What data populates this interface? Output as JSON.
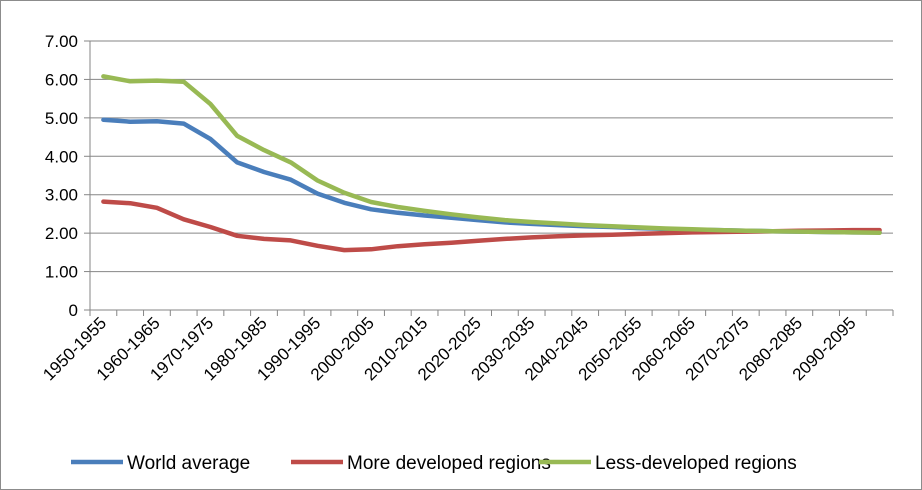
{
  "chart_data": {
    "type": "line",
    "title": "",
    "xlabel": "",
    "ylabel": "",
    "ylim": [
      0,
      7
    ],
    "y_ticks": [
      "0",
      "1.00",
      "2.00",
      "3.00",
      "4.00",
      "5.00",
      "6.00",
      "7.00"
    ],
    "grid": "horizontal",
    "legend_position": "bottom",
    "categories": [
      "1950-1955",
      "1955-1960",
      "1960-1965",
      "1965-1970",
      "1970-1975",
      "1975-1980",
      "1980-1985",
      "1985-1990",
      "1990-1995",
      "1995-2000",
      "2000-2005",
      "2005-2010",
      "2010-2015",
      "2015-2020",
      "2020-2025",
      "2025-2030",
      "2030-2035",
      "2035-2040",
      "2040-2045",
      "2045-2050",
      "2050-2055",
      "2055-2060",
      "2060-2065",
      "2065-2070",
      "2070-2075",
      "2075-2080",
      "2080-2085",
      "2085-2090",
      "2090-2095",
      "2095-2100"
    ],
    "x_tick_labels": [
      "1950-1955",
      "1960-1965",
      "1970-1975",
      "1980-1985",
      "1990-1995",
      "2000-2005",
      "2010-2015",
      "2020-2025",
      "2030-2035",
      "2040-2045",
      "2050-2055",
      "2060-2065",
      "2070-2075",
      "2080-2085",
      "2090-2095"
    ],
    "series": [
      {
        "name": "World average",
        "color": "#4a7ebb",
        "values": [
          4.95,
          4.9,
          4.91,
          4.85,
          4.45,
          3.84,
          3.59,
          3.39,
          3.03,
          2.79,
          2.62,
          2.53,
          2.46,
          2.4,
          2.34,
          2.28,
          2.24,
          2.21,
          2.18,
          2.16,
          2.13,
          2.11,
          2.09,
          2.08,
          2.06,
          2.05,
          2.04,
          2.03,
          2.02,
          2.02
        ]
      },
      {
        "name": "More developed regions",
        "color": "#be4b48",
        "values": [
          2.82,
          2.78,
          2.66,
          2.36,
          2.16,
          1.93,
          1.85,
          1.81,
          1.67,
          1.56,
          1.58,
          1.66,
          1.71,
          1.75,
          1.8,
          1.85,
          1.89,
          1.92,
          1.94,
          1.96,
          1.98,
          2.0,
          2.02,
          2.03,
          2.04,
          2.05,
          2.06,
          2.07,
          2.08,
          2.08
        ]
      },
      {
        "name": "Less-developed regions",
        "color": "#98b954",
        "values": [
          6.08,
          5.95,
          5.97,
          5.94,
          5.36,
          4.53,
          4.16,
          3.84,
          3.37,
          3.05,
          2.81,
          2.68,
          2.58,
          2.49,
          2.41,
          2.34,
          2.29,
          2.25,
          2.21,
          2.18,
          2.15,
          2.12,
          2.1,
          2.08,
          2.06,
          2.05,
          2.04,
          2.03,
          2.02,
          2.01
        ]
      }
    ]
  }
}
